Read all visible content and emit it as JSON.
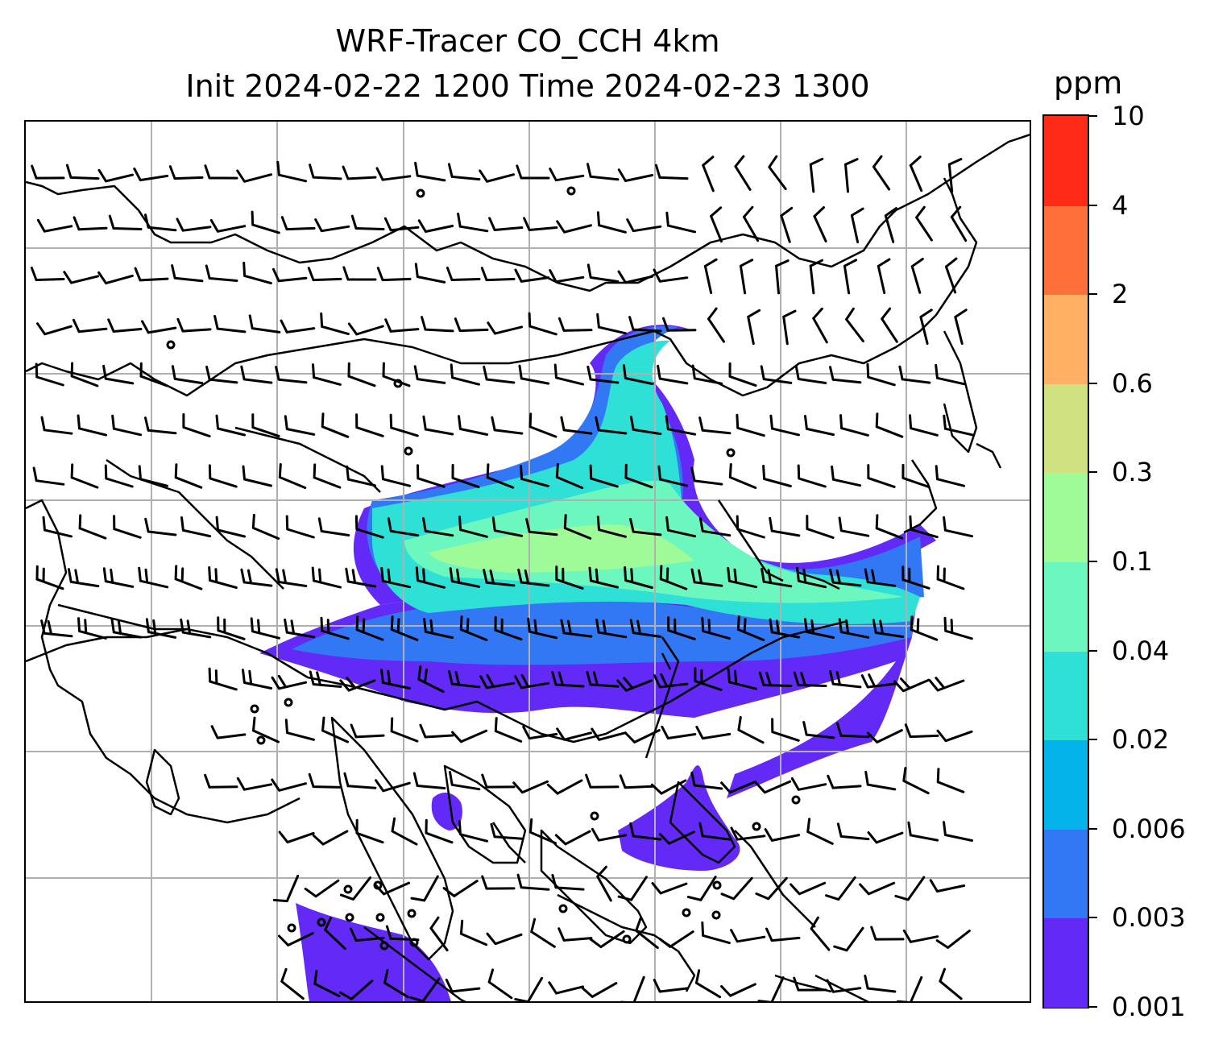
{
  "title": {
    "line1": "WRF-Tracer CO_CCH 4km",
    "line2": "Init 2024-02-22 1200 Time 2024-02-23 1300"
  },
  "colorbar": {
    "unit": "ppm",
    "levels": [
      "0.001",
      "0.003",
      "0.006",
      "0.02",
      "0.04",
      "0.1",
      "0.3",
      "0.6",
      "2",
      "4",
      "10"
    ],
    "colors": [
      "#6229f7",
      "#3277f3",
      "#03b3ea",
      "#2fe0d6",
      "#6bf7be",
      "#9ffb98",
      "#d0e182",
      "#ffb062",
      "#ff6f3a",
      "#ff2a17"
    ]
  },
  "map": {
    "type": "tracer concentration with wind barbs",
    "grid": true,
    "fill_colors": {
      "very_low": "#6229f7",
      "low": "#3277f3",
      "moderate": "#2fe0d6",
      "high": "#6bf7be",
      "peak": "#9ffb98"
    },
    "line_color": "#000000",
    "grid_color": "#b0b0b0"
  }
}
